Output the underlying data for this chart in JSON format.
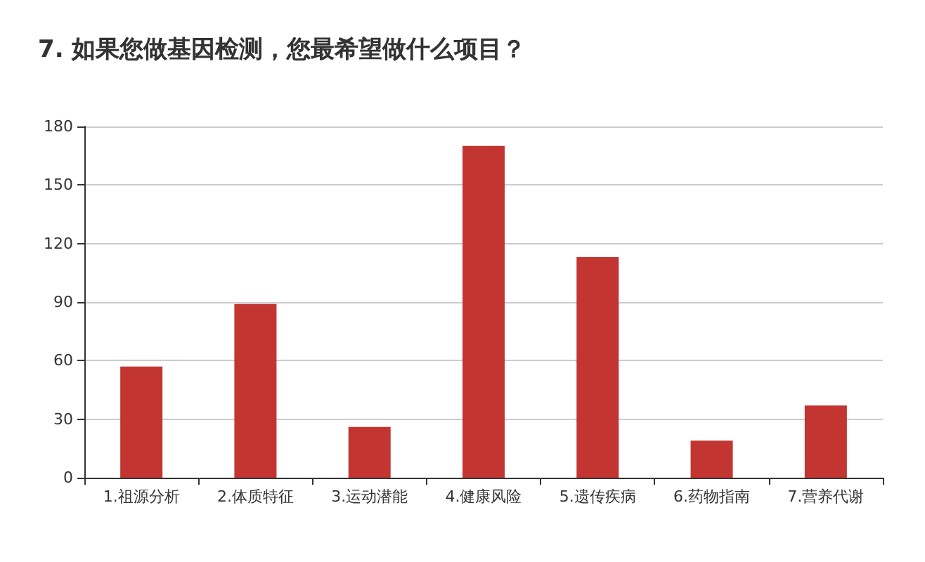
{
  "chart_data": {
    "type": "bar",
    "title": "7. 如果您做基因检测，您最希望做什么项目？",
    "categories": [
      "1.祖源分析",
      "2.体质特征",
      "3.运动潜能",
      "4.健康风险",
      "5.遗传疾病",
      "6.药物指南",
      "7.营养代谢"
    ],
    "values": [
      57,
      89,
      26,
      170,
      113,
      19,
      37
    ],
    "color": "#c23531",
    "ylim": [
      0,
      180
    ],
    "yticks": [
      0,
      30,
      60,
      90,
      120,
      150,
      180
    ],
    "grid": "y"
  }
}
